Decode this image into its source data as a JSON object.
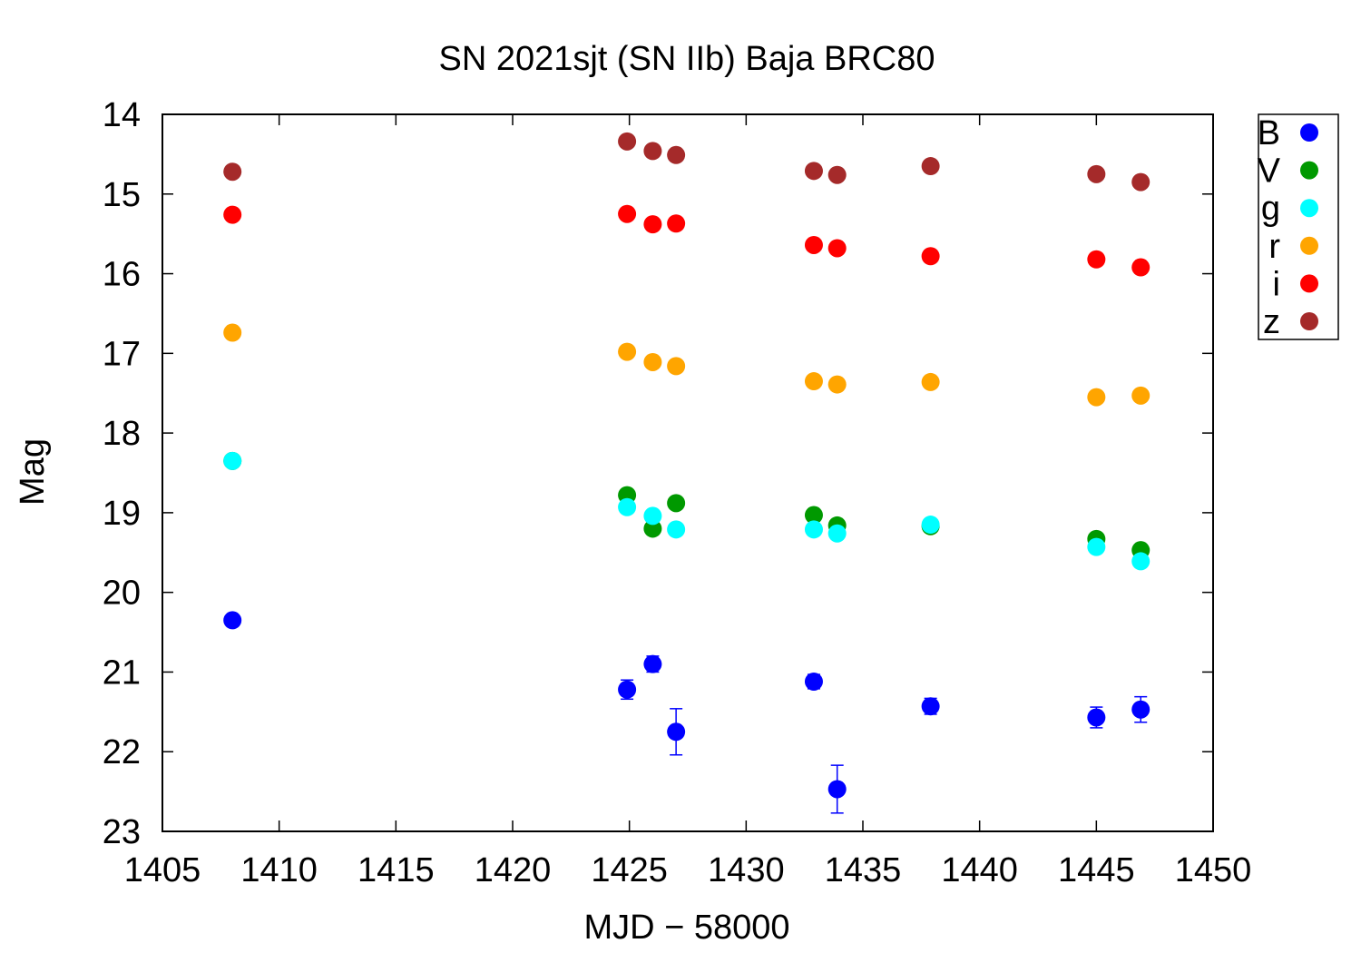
{
  "chart_data": {
    "type": "scatter",
    "title": "SN 2021sjt (SN IIb) Baja BRC80",
    "xlabel": "MJD − 58000",
    "ylabel": "Mag",
    "xlim": [
      1405,
      1450
    ],
    "ylim": [
      23,
      14
    ],
    "y_inverted": true,
    "x_ticks": [
      1405,
      1410,
      1415,
      1420,
      1425,
      1430,
      1435,
      1440,
      1445,
      1450
    ],
    "y_ticks": [
      14,
      15,
      16,
      17,
      18,
      19,
      20,
      21,
      22,
      23
    ],
    "grid": false,
    "legend_position": "outside top-right",
    "series": [
      {
        "name": "B",
        "color": "#0000ff",
        "x": [
          1408.0,
          1424.9,
          1426.0,
          1427.0,
          1432.9,
          1433.9,
          1437.9,
          1445.0,
          1446.9
        ],
        "y": [
          20.35,
          21.22,
          20.9,
          21.75,
          21.12,
          22.47,
          21.43,
          21.57,
          21.47
        ],
        "err": [
          0.03,
          0.12,
          0.1,
          0.29,
          0.09,
          0.3,
          0.1,
          0.13,
          0.16
        ]
      },
      {
        "name": "V",
        "color": "#009900",
        "x": [
          1408.0,
          1424.9,
          1426.0,
          1427.0,
          1432.9,
          1433.9,
          1437.9,
          1445.0,
          1446.9
        ],
        "y": [
          18.35,
          18.78,
          19.2,
          18.88,
          19.03,
          19.16,
          19.17,
          19.33,
          19.47
        ],
        "err": [
          0,
          0,
          0,
          0,
          0,
          0,
          0,
          0,
          0
        ]
      },
      {
        "name": "g",
        "color": "#00ffff",
        "x": [
          1408.0,
          1424.9,
          1426.0,
          1427.0,
          1432.9,
          1433.9,
          1437.9,
          1445.0,
          1446.9
        ],
        "y": [
          18.35,
          18.93,
          19.04,
          19.21,
          19.21,
          19.26,
          19.15,
          19.43,
          19.61
        ],
        "err": [
          0,
          0,
          0,
          0,
          0,
          0,
          0,
          0,
          0
        ]
      },
      {
        "name": "r",
        "color": "#ffa500",
        "x": [
          1408.0,
          1424.9,
          1426.0,
          1427.0,
          1432.9,
          1433.9,
          1437.9,
          1445.0,
          1446.9
        ],
        "y": [
          16.74,
          16.98,
          17.11,
          17.16,
          17.35,
          17.39,
          17.36,
          17.55,
          17.53
        ],
        "err": [
          0,
          0,
          0,
          0,
          0,
          0,
          0,
          0,
          0
        ]
      },
      {
        "name": "i",
        "color": "#ff0000",
        "x": [
          1408.0,
          1424.9,
          1426.0,
          1427.0,
          1432.9,
          1433.9,
          1437.9,
          1445.0,
          1446.9
        ],
        "y": [
          15.26,
          15.25,
          15.38,
          15.37,
          15.64,
          15.68,
          15.78,
          15.82,
          15.92
        ],
        "err": [
          0,
          0,
          0,
          0,
          0,
          0,
          0,
          0,
          0
        ]
      },
      {
        "name": "z",
        "color": "#a52a2a",
        "x": [
          1408.0,
          1424.9,
          1426.0,
          1427.0,
          1432.9,
          1433.9,
          1437.9,
          1445.0,
          1446.9
        ],
        "y": [
          14.72,
          14.34,
          14.46,
          14.51,
          14.71,
          14.76,
          14.65,
          14.75,
          14.85
        ],
        "err": [
          0,
          0,
          0,
          0,
          0,
          0,
          0,
          0,
          0
        ]
      }
    ]
  }
}
